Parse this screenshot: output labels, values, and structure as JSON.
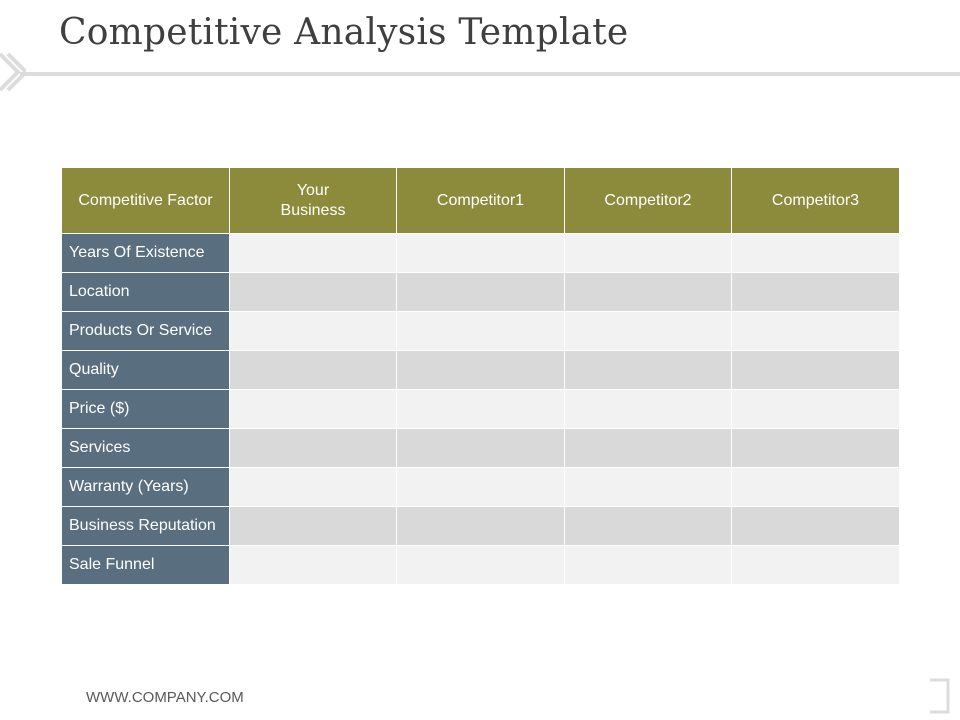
{
  "slide": {
    "title": "Competitive Analysis Template",
    "footer": "WWW.COMPANY.COM"
  },
  "table": {
    "headers": [
      "Competitive Factor",
      "Your\nBusiness",
      "Competitor1",
      "Competitor2",
      "Competitor3"
    ],
    "rows": [
      {
        "factor": "Years Of Existence"
      },
      {
        "factor": "Location"
      },
      {
        "factor": "Products Or Service"
      },
      {
        "factor": "Quality"
      },
      {
        "factor": "Price ($)"
      },
      {
        "factor": "Services"
      },
      {
        "factor": "Warranty (Years)"
      },
      {
        "factor": "Business Reputation"
      },
      {
        "factor": "Sale Funnel"
      }
    ]
  },
  "colors": {
    "header_bg": "#8b8b3b",
    "factor_bg": "#596e7e",
    "row_light": "#f2f2f2",
    "row_dark": "#d9d9d9"
  }
}
